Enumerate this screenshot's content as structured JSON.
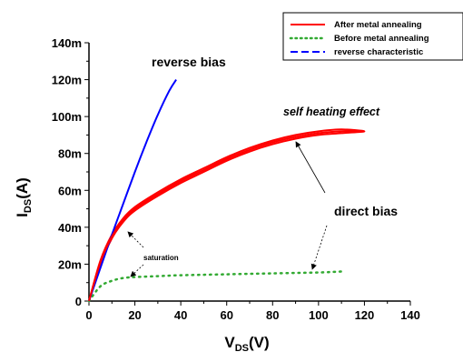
{
  "chart_data": {
    "type": "line",
    "xlabel": "V_DS(V)",
    "ylabel": "I_DS(A)",
    "xlim": [
      0,
      140
    ],
    "ylim": [
      0,
      0.14
    ],
    "x_ticks": [
      0,
      20,
      40,
      60,
      80,
      100,
      120,
      140
    ],
    "x_tick_labels": [
      "0",
      "20",
      "40",
      "60",
      "80",
      "100",
      "120",
      "140"
    ],
    "y_ticks": [
      0,
      0.02,
      0.04,
      0.06,
      0.08,
      0.1,
      0.12,
      0.14
    ],
    "y_tick_labels": [
      "0",
      "20m",
      "40m",
      "60m",
      "80m",
      "100m",
      "120m",
      "140m"
    ],
    "grid": false,
    "legend_position": "top-right",
    "legend": [
      "After metal annealing",
      "Before metal annealing",
      "reverse characteristic"
    ],
    "series": [
      {
        "name": "After metal annealing",
        "color": "#ff0000",
        "style": "solid",
        "x": [
          0,
          5,
          10,
          15,
          20,
          30,
          40,
          50,
          60,
          70,
          80,
          90,
          100,
          110,
          120,
          110,
          100,
          90,
          80,
          70,
          60,
          50,
          40,
          30,
          20,
          15,
          10,
          5,
          0
        ],
        "y": [
          0,
          0.022,
          0.036,
          0.045,
          0.051,
          0.059,
          0.066,
          0.072,
          0.078,
          0.083,
          0.087,
          0.09,
          0.092,
          0.093,
          0.092,
          0.091,
          0.09,
          0.088,
          0.085,
          0.081,
          0.076,
          0.07,
          0.064,
          0.057,
          0.049,
          0.043,
          0.034,
          0.02,
          0
        ]
      },
      {
        "name": "Before metal annealing",
        "color": "#33aa33",
        "style": "dotted",
        "x": [
          0,
          5,
          10,
          15,
          20,
          30,
          40,
          60,
          80,
          100,
          110
        ],
        "y": [
          0,
          0.008,
          0.011,
          0.0125,
          0.013,
          0.0135,
          0.014,
          0.0145,
          0.015,
          0.0155,
          0.016
        ]
      },
      {
        "name": "reverse characteristic",
        "color": "#0000ff",
        "style": "solid",
        "x": [
          0,
          5,
          10,
          15,
          20,
          25,
          30,
          35,
          38
        ],
        "y": [
          0,
          0.018,
          0.036,
          0.053,
          0.07,
          0.086,
          0.101,
          0.114,
          0.12
        ]
      }
    ],
    "annotations": [
      "reverse bias",
      "self heating effect",
      "direct bias",
      "saturation"
    ]
  },
  "labels": {
    "ylabel_main": "I",
    "ylabel_sub": "DS",
    "ylabel_unit": "(A)",
    "xlabel_main": "V",
    "xlabel_sub": "DS",
    "xlabel_unit": "(V)"
  }
}
